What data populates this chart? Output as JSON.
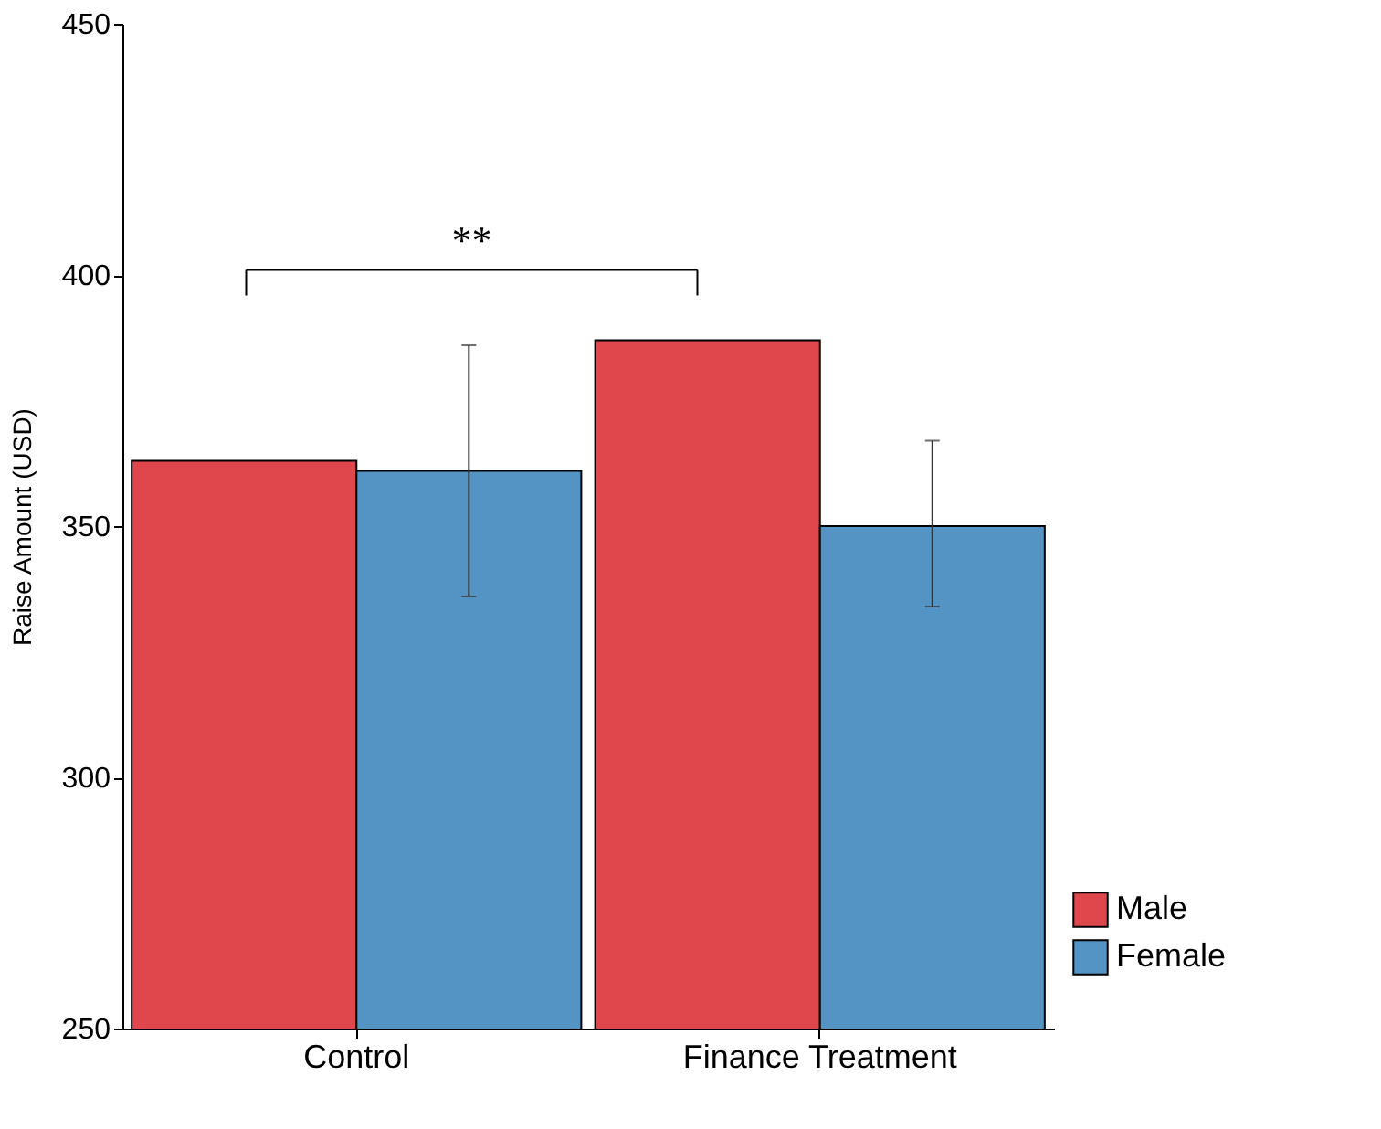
{
  "chart_data": {
    "type": "bar",
    "ylabel": "Raise Amount (USD)",
    "categories": [
      "Control",
      "Finance Treatment"
    ],
    "series": [
      {
        "name": "Male",
        "color": "#e0474c",
        "values": [
          363,
          387
        ]
      },
      {
        "name": "Female",
        "color": "#5394c5",
        "values": [
          361,
          350
        ],
        "errors": [
          [
            336,
            386
          ],
          [
            334,
            367
          ]
        ]
      }
    ],
    "ylim": [
      250,
      450
    ],
    "yticks": [
      250,
      300,
      350,
      400,
      450
    ],
    "grid": false,
    "legend": "bottom right",
    "annotations": [
      "**"
    ]
  }
}
